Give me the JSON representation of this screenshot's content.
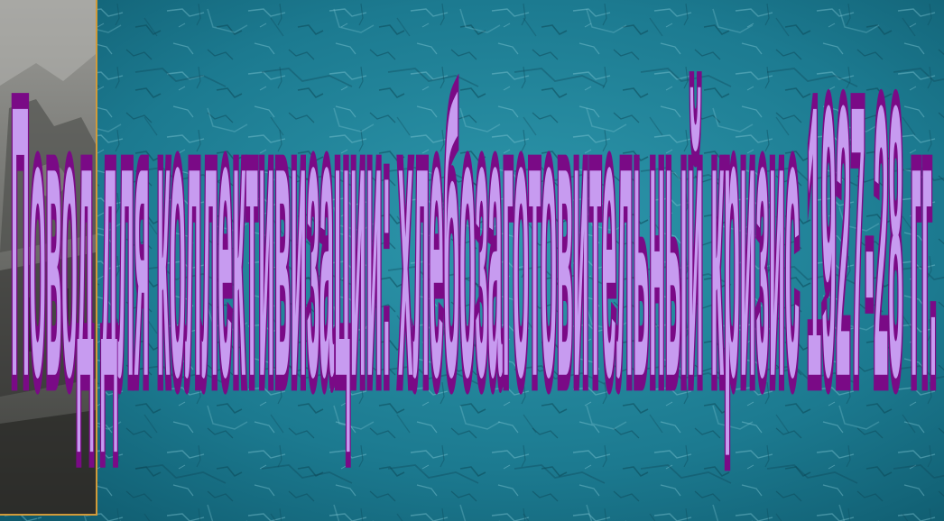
{
  "slide": {
    "title": "Повод для коллективизации: хлебозаготовительный кризис 1927-28 гг.",
    "colors": {
      "background": "#1f7e94",
      "text_fill": "#c79bf0",
      "text_stroke": "#7a0a86",
      "photo_border": "#d19a3a"
    }
  }
}
